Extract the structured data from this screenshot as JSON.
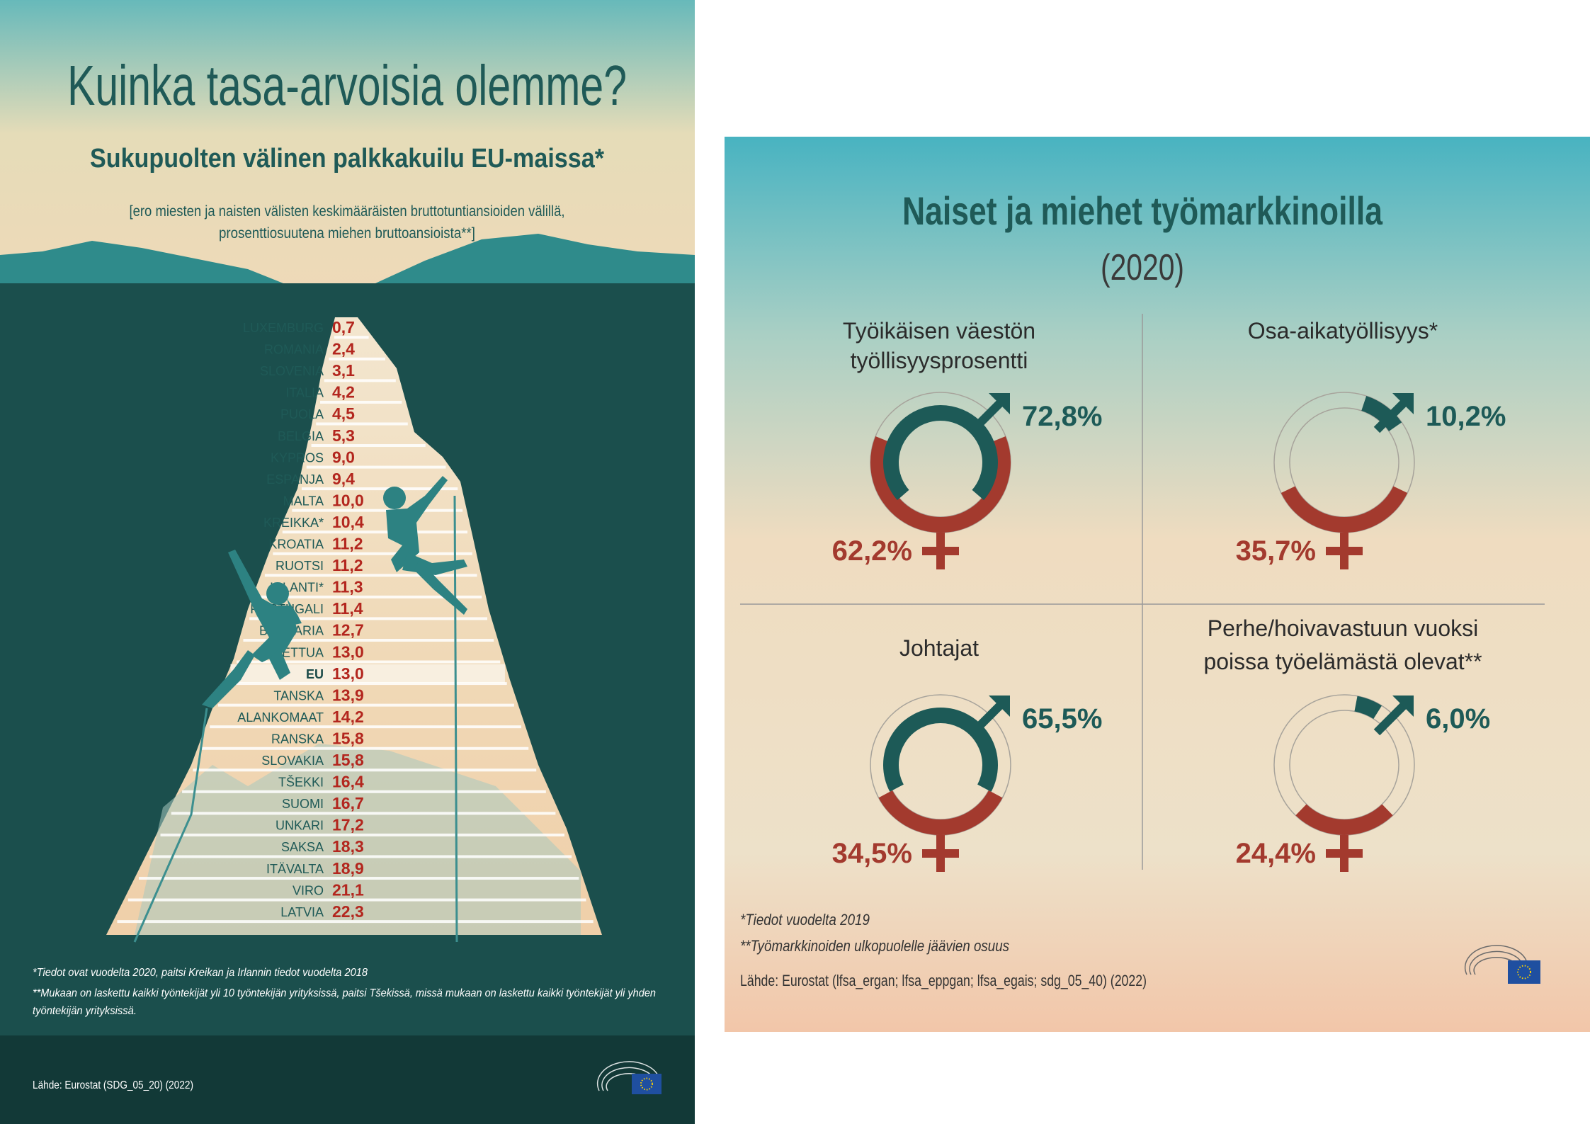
{
  "left": {
    "title": "Kuinka tasa-arvoisia olemme?",
    "subtitle": "Sukupuolten välinen palkkakuilu EU-maissa*",
    "description_line1": "[ero miesten ja naisten välisten keskimääräisten bruttotuntiansioiden välillä,",
    "description_line2": "prosenttiosuutena miehen bruttoansioista**]",
    "footnote1": "*Tiedot ovat vuodelta 2020, paitsi Kreikan ja Irlannin tiedot vuodelta 2018",
    "footnote2_line1": "**Mukaan on laskettu kaikki työntekijät yli 10 työntekijän yrityksissä, paitsi Tšekissä, missä mukaan on laskettu kaikki työntekijät yli yhden",
    "footnote2_line2": "työntekijän yrityksissä.",
    "source": "Lähde: Eurostat (SDG_05_20) (2022)",
    "highlight_row": "EU"
  },
  "chart_data": [
    {
      "type": "bar",
      "categories": [
        "LUXEMBURG",
        "ROMANIA",
        "SLOVENIA",
        "ITALIA",
        "PUOLA",
        "BELGIA",
        "KYPROS",
        "ESPANJA",
        "MALTA",
        "KREIKKA*",
        "KROATIA",
        "RUOTSI",
        "IRLANTI*",
        "PORTUGALI",
        "BULGARIA",
        "LIETTUA",
        "EU",
        "TANSKA",
        "ALANKOMAAT",
        "RANSKA",
        "SLOVAKIA",
        "TŠEKKI",
        "SUOMI",
        "UNKARI",
        "SAKSA",
        "ITÄVALTA",
        "VIRO",
        "LATVIA"
      ],
      "value_labels": [
        "0,7",
        "2,4",
        "3,1",
        "4,2",
        "4,5",
        "5,3",
        "9,0",
        "9,4",
        "10,0",
        "10,4",
        "11,2",
        "11,2",
        "11,3",
        "11,4",
        "12,7",
        "13,0",
        "13,0",
        "13,9",
        "14,2",
        "15,8",
        "15,8",
        "16,4",
        "16,7",
        "17,2",
        "18,3",
        "18,9",
        "21,1",
        "22,3"
      ],
      "values": [
        0.7,
        2.4,
        3.1,
        4.2,
        4.5,
        5.3,
        9.0,
        9.4,
        10.0,
        10.4,
        11.2,
        11.2,
        11.3,
        11.4,
        12.7,
        13.0,
        13.0,
        13.9,
        14.2,
        15.8,
        15.8,
        16.4,
        16.7,
        17.2,
        18.3,
        18.9,
        21.1,
        22.3
      ],
      "title": "Sukupuolten välinen palkkakuilu EU-maissa*"
    },
    {
      "type": "pie",
      "items": [
        {
          "title_line1": "Työikäisen väestön",
          "title_line2": "työllisyysprosentti",
          "male": 72.8,
          "female": 62.2,
          "male_label": "72,8%",
          "female_label": "62,2%"
        },
        {
          "title_line1": "Osa-aikatyöllisyys*",
          "title_line2": "",
          "male": 10.2,
          "female": 35.7,
          "male_label": "10,2%",
          "female_label": "35,7%"
        },
        {
          "title_line1": "Johtajat",
          "title_line2": "",
          "male": 65.5,
          "female": 34.5,
          "male_label": "65,5%",
          "female_label": "34,5%"
        },
        {
          "title_line1": "Perhe/hoivavastuun vuoksi",
          "title_line2": "poissa työelämästä olevat**",
          "male": 6.0,
          "female": 24.4,
          "male_label": "6,0%",
          "female_label": "24,4%"
        }
      ],
      "title": "Naiset ja miehet työmarkkinoilla"
    }
  ],
  "right": {
    "title": "Naiset ja miehet työmarkkinoilla",
    "year": "(2020)",
    "footnote1": "*Tiedot vuodelta 2019",
    "footnote2": "**Työmarkkinoiden ulkopuolelle jäävien osuus",
    "source": "Lähde: Eurostat (lfsa_ergan; lfsa_eppgan; lfsa_egais; sdg_05_40) (2022)"
  },
  "colors": {
    "teal_dark": "#1a5250",
    "teal_mid": "#2b8f8f",
    "red": "#a33a2e",
    "title_green": "#1f5a57",
    "male_dark": "#1d5a57"
  }
}
